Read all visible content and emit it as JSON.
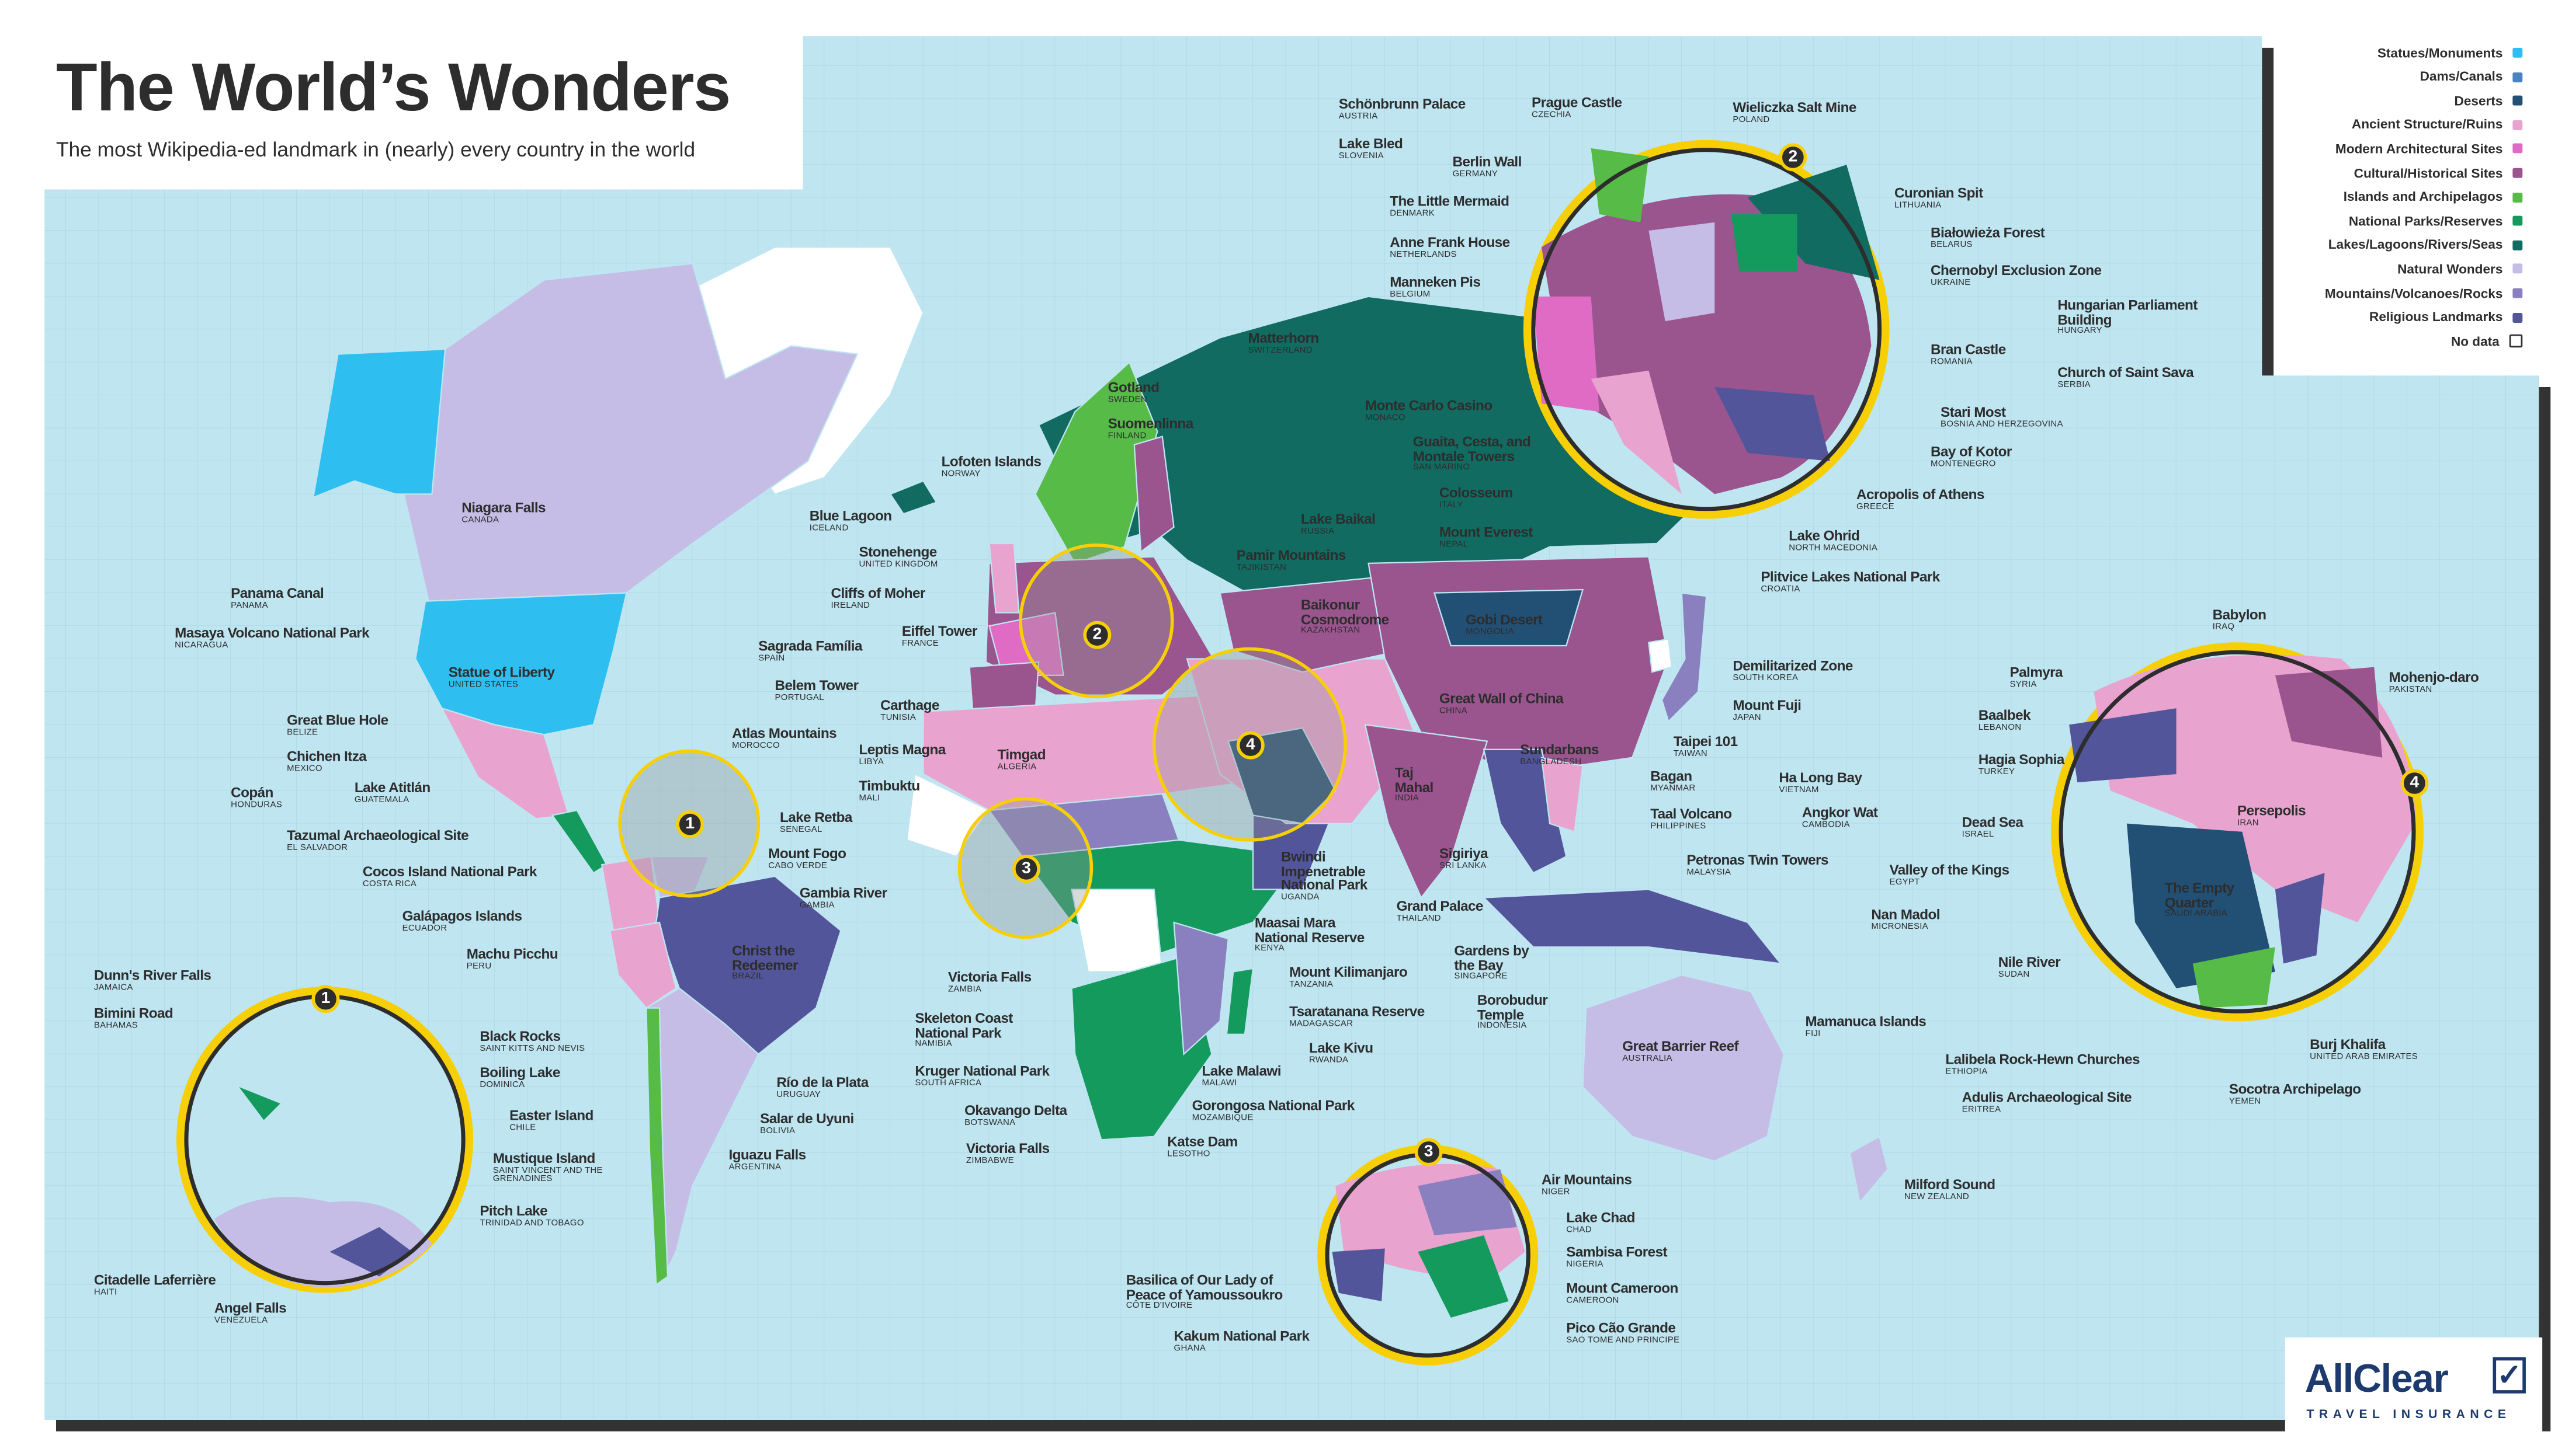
{
  "header": {
    "title": "The World’s Wonders",
    "subtitle": "The most Wikipedia-ed landmark in (nearly) every country in the world"
  },
  "legend": [
    {
      "label": "Statues/Monuments",
      "color": "#2ebff0"
    },
    {
      "label": "Dams/Canals",
      "color": "#4a83c2"
    },
    {
      "label": "Deserts",
      "color": "#224f74"
    },
    {
      "label": "Ancient Structure/Ruins",
      "color": "#e9a3cf"
    },
    {
      "label": "Modern Architectural Sites",
      "color": "#e06bc4"
    },
    {
      "label": "Cultural/Historical Sites",
      "color": "#9a558f"
    },
    {
      "label": "Islands and Archipelagos",
      "color": "#57bb48"
    },
    {
      "label": "National Parks/Reserves",
      "color": "#159a5e"
    },
    {
      "label": "Lakes/Lagoons/Rivers/Seas",
      "color": "#116b61"
    },
    {
      "label": "Natural Wonders",
      "color": "#c5bde6"
    },
    {
      "label": "Mountains/Volcanoes/Rocks",
      "color": "#8a80c0"
    },
    {
      "label": "Religious Landmarks",
      "color": "#53559a"
    },
    {
      "label": "No data",
      "color": "#ffffff"
    }
  ],
  "zoom_badges": [
    "1",
    "2",
    "3",
    "4"
  ],
  "labels": [
    {
      "name": "Schönbrunn Palace",
      "country": "AUSTRIA"
    },
    {
      "name": "Prague Castle",
      "country": "CZECHIA"
    },
    {
      "name": "Wieliczka Salt Mine",
      "country": "POLAND"
    },
    {
      "name": "Lake Bled",
      "country": "SLOVENIA"
    },
    {
      "name": "Berlin Wall",
      "country": "GERMANY"
    },
    {
      "name": "The Little Mermaid",
      "country": "DENMARK"
    },
    {
      "name": "Anne Frank House",
      "country": "NETHERLANDS"
    },
    {
      "name": "Manneken Pis",
      "country": "BELGIUM"
    },
    {
      "name": "Matterhorn",
      "country": "SWITZERLAND"
    },
    {
      "name": "Monte Carlo Casino",
      "country": "MONACO"
    },
    {
      "name": "Guaita, Cesta, and Montale Towers",
      "country": "SAN MARINO"
    },
    {
      "name": "Colosseum",
      "country": "ITALY"
    },
    {
      "name": "Lake Baikal",
      "country": "RUSSIA"
    },
    {
      "name": "Mount Everest",
      "country": "NEPAL"
    },
    {
      "name": "Pamir Mountains",
      "country": "TAJIKISTAN"
    },
    {
      "name": "Baikonur Cosmodrome",
      "country": "KAZAKHSTAN"
    },
    {
      "name": "Gobi Desert",
      "country": "MONGOLIA"
    },
    {
      "name": "Great Wall of China",
      "country": "CHINA"
    },
    {
      "name": "Taj Mahal",
      "country": "INDIA"
    },
    {
      "name": "Sundarbans",
      "country": "BANGLADESH"
    },
    {
      "name": "Curonian Spit",
      "country": "LITHUANIA"
    },
    {
      "name": "Białowieża Forest",
      "country": "BELARUS"
    },
    {
      "name": "Chernobyl Exclusion Zone",
      "country": "UKRAINE"
    },
    {
      "name": "Hungarian Parliament Building",
      "country": "HUNGARY"
    },
    {
      "name": "Bran Castle",
      "country": "ROMANIA"
    },
    {
      "name": "Church of Saint Sava",
      "country": "SERBIA"
    },
    {
      "name": "Stari Most",
      "country": "BOSNIA AND HERZEGOVINA"
    },
    {
      "name": "Bay of Kotor",
      "country": "MONTENEGRO"
    },
    {
      "name": "Acropolis of Athens",
      "country": "GREECE"
    },
    {
      "name": "Lake Ohrid",
      "country": "NORTH MACEDONIA"
    },
    {
      "name": "Plitvice Lakes National Park",
      "country": "CROATIA"
    },
    {
      "name": "Demilitarized Zone",
      "country": "SOUTH KOREA"
    },
    {
      "name": "Mount Fuji",
      "country": "JAPAN"
    },
    {
      "name": "Taipei 101",
      "country": "TAIWAN"
    },
    {
      "name": "Bagan",
      "country": "MYANMAR"
    },
    {
      "name": "Ha Long Bay",
      "country": "VIETNAM"
    },
    {
      "name": "Taal Volcano",
      "country": "PHILIPPINES"
    },
    {
      "name": "Angkor Wat",
      "country": "CAMBODIA"
    },
    {
      "name": "Petronas Twin Towers",
      "country": "MALAYSIA"
    },
    {
      "name": "Sigiriya",
      "country": "SRI LANKA"
    },
    {
      "name": "Grand Palace",
      "country": "THAILAND"
    },
    {
      "name": "Gardens by the Bay",
      "country": "SINGAPORE"
    },
    {
      "name": "Borobudur Temple",
      "country": "INDONESIA"
    },
    {
      "name": "Nan Madol",
      "country": "MICRONESIA"
    },
    {
      "name": "Valley of the Kings",
      "country": "EGYPT"
    },
    {
      "name": "Mamanuca Islands",
      "country": "FIJI"
    },
    {
      "name": "Great Barrier Reef",
      "country": "AUSTRALIA"
    },
    {
      "name": "Milford Sound",
      "country": "NEW ZEALAND"
    },
    {
      "name": "Babylon",
      "country": "IRAQ"
    },
    {
      "name": "Palmyra",
      "country": "SYRIA"
    },
    {
      "name": "Mohenjo-daro",
      "country": "PAKISTAN"
    },
    {
      "name": "Baalbek",
      "country": "LEBANON"
    },
    {
      "name": "Hagia Sophia",
      "country": "TURKEY"
    },
    {
      "name": "Dead Sea",
      "country": "ISRAEL"
    },
    {
      "name": "Persepolis",
      "country": "IRAN"
    },
    {
      "name": "The Empty Quarter",
      "country": "SAUDI ARABIA"
    },
    {
      "name": "Nile River",
      "country": "SUDAN"
    },
    {
      "name": "Burj Khalifa",
      "country": "UNITED ARAB EMIRATES"
    },
    {
      "name": "Lalibela Rock-Hewn Churches",
      "country": "ETHIOPIA"
    },
    {
      "name": "Socotra Archipelago",
      "country": "YEMEN"
    },
    {
      "name": "Adulis Archaeological Site",
      "country": "ERITREA"
    },
    {
      "name": "Air Mountains",
      "country": "NIGER"
    },
    {
      "name": "Lake Chad",
      "country": "CHAD"
    },
    {
      "name": "Sambisa Forest",
      "country": "NIGERIA"
    },
    {
      "name": "Mount Cameroon",
      "country": "CAMEROON"
    },
    {
      "name": "Pico Cão Grande",
      "country": "SAO TOME AND PRINCIPE"
    },
    {
      "name": "Basilica of Our Lady of Peace of Yamoussoukro",
      "country": "CÔTE D'IVOIRE"
    },
    {
      "name": "Kakum National Park",
      "country": "GHANA"
    },
    {
      "name": "Victoria Falls",
      "country": "ZAMBIA"
    },
    {
      "name": "Skeleton Coast National Park",
      "country": "NAMIBIA"
    },
    {
      "name": "Kruger National Park",
      "country": "SOUTH AFRICA"
    },
    {
      "name": "Okavango Delta",
      "country": "BOTSWANA"
    },
    {
      "name": "Victoria Falls",
      "country": "ZIMBABWE"
    },
    {
      "name": "Lake Malawi",
      "country": "MALAWI"
    },
    {
      "name": "Gorongosa National Park",
      "country": "MOZAMBIQUE"
    },
    {
      "name": "Katse Dam",
      "country": "LESOTHO"
    },
    {
      "name": "Mount Kilimanjaro",
      "country": "TANZANIA"
    },
    {
      "name": "Tsaratanana Reserve",
      "country": "MADAGASCAR"
    },
    {
      "name": "Lake Kivu",
      "country": "RWANDA"
    },
    {
      "name": "Maasai Mara National Reserve",
      "country": "KENYA"
    },
    {
      "name": "Bwindi Impenetrable National Park",
      "country": "UGANDA"
    },
    {
      "name": "Gotland",
      "country": "SWEDEN"
    },
    {
      "name": "Suomenlinna",
      "country": "FINLAND"
    },
    {
      "name": "Lofoten Islands",
      "country": "NORWAY"
    },
    {
      "name": "Blue Lagoon",
      "country": "ICELAND"
    },
    {
      "name": "Stonehenge",
      "country": "UNITED KINGDOM"
    },
    {
      "name": "Cliffs of Moher",
      "country": "IRELAND"
    },
    {
      "name": "Eiffel Tower",
      "country": "FRANCE"
    },
    {
      "name": "Sagrada Família",
      "country": "SPAIN"
    },
    {
      "name": "Belem Tower",
      "country": "PORTUGAL"
    },
    {
      "name": "Carthage",
      "country": "TUNISIA"
    },
    {
      "name": "Atlas Mountains",
      "country": "MOROCCO"
    },
    {
      "name": "Leptis Magna",
      "country": "LIBYA"
    },
    {
      "name": "Timgad",
      "country": "ALGERIA"
    },
    {
      "name": "Timbuktu",
      "country": "MALI"
    },
    {
      "name": "Lake Retba",
      "country": "SENEGAL"
    },
    {
      "name": "Mount Fogo",
      "country": "CABO VERDE"
    },
    {
      "name": "Gambia River",
      "country": "GAMBIA"
    },
    {
      "name": "Niagara Falls",
      "country": "CANADA"
    },
    {
      "name": "Panama Canal",
      "country": "PANAMA"
    },
    {
      "name": "Masaya Volcano National Park",
      "country": "NICARAGUA"
    },
    {
      "name": "Statue of Liberty",
      "country": "UNITED STATES"
    },
    {
      "name": "Great Blue Hole",
      "country": "BELIZE"
    },
    {
      "name": "Chichen Itza",
      "country": "MEXICO"
    },
    {
      "name": "Lake Atitlán",
      "country": "GUATEMALA"
    },
    {
      "name": "Copán",
      "country": "HONDURAS"
    },
    {
      "name": "Tazumal Archaeological Site",
      "country": "EL SALVADOR"
    },
    {
      "name": "Cocos Island National Park",
      "country": "COSTA RICA"
    },
    {
      "name": "Galápagos Islands",
      "country": "ECUADOR"
    },
    {
      "name": "Machu Picchu",
      "country": "PERU"
    },
    {
      "name": "Christ the Redeemer",
      "country": "BRAZIL"
    },
    {
      "name": "Río de la Plata",
      "country": "URUGUAY"
    },
    {
      "name": "Salar de Uyuni",
      "country": "BOLIVIA"
    },
    {
      "name": "Iguazu Falls",
      "country": "ARGENTINA"
    },
    {
      "name": "Dunn's River Falls",
      "country": "JAMAICA"
    },
    {
      "name": "Bimini Road",
      "country": "BAHAMAS"
    },
    {
      "name": "Black Rocks",
      "country": "SAINT KITTS AND NEVIS"
    },
    {
      "name": "Boiling Lake",
      "country": "DOMINICA"
    },
    {
      "name": "Easter Island",
      "country": "CHILE"
    },
    {
      "name": "Mustique Island",
      "country": "SAINT VINCENT AND THE GRENADINES"
    },
    {
      "name": "Pitch Lake",
      "country": "TRINIDAD AND TOBAGO"
    },
    {
      "name": "Citadelle Laferrière",
      "country": "HAITI"
    },
    {
      "name": "Angel Falls",
      "country": "VENEZUELA"
    }
  ],
  "logo": {
    "name": "AllClear",
    "tagline": "TRAVEL INSURANCE"
  }
}
